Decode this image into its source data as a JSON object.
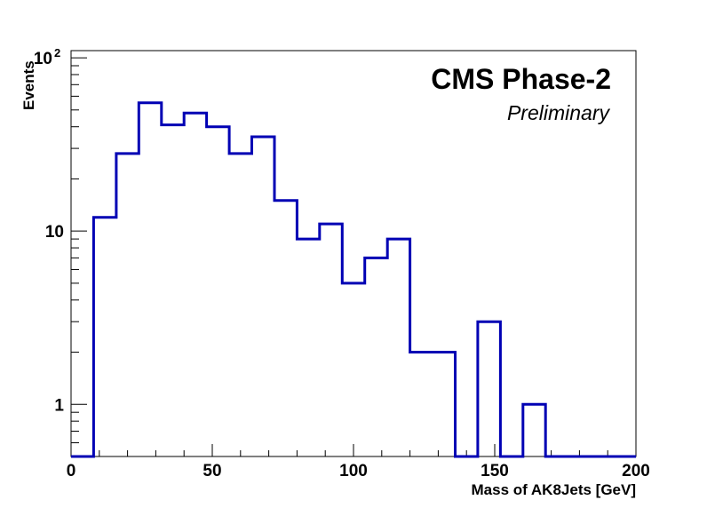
{
  "chart_data": {
    "type": "histogram",
    "title": "CMS Phase-2",
    "subtitle": "Preliminary",
    "xlabel": "Mass of AK8Jets [GeV]",
    "ylabel": "Events",
    "xlim": [
      0,
      200
    ],
    "ylim": [
      0.5,
      110
    ],
    "log_y": true,
    "grid": false,
    "line_color": "#0000b4",
    "bin_width": 8,
    "bin_edges": [
      0,
      8,
      16,
      24,
      32,
      40,
      48,
      56,
      64,
      72,
      80,
      88,
      96,
      104,
      112,
      120,
      128,
      136,
      144,
      152,
      160,
      168,
      176,
      184,
      192,
      200
    ],
    "counts": [
      0,
      12,
      28,
      55,
      41,
      48,
      40,
      28,
      35,
      15,
      9,
      11,
      5,
      7,
      9,
      2,
      2,
      0,
      3,
      0,
      1,
      0,
      0,
      0,
      0
    ],
    "x_ticks": [
      0,
      50,
      100,
      150,
      200
    ],
    "x_tick_labels": [
      "0",
      "50",
      "100",
      "150",
      "200"
    ],
    "y_major_ticks": [
      1,
      10,
      100
    ],
    "y_tick_labels": [
      "1",
      "10",
      "10"
    ],
    "y_tick_exponent": "2"
  }
}
